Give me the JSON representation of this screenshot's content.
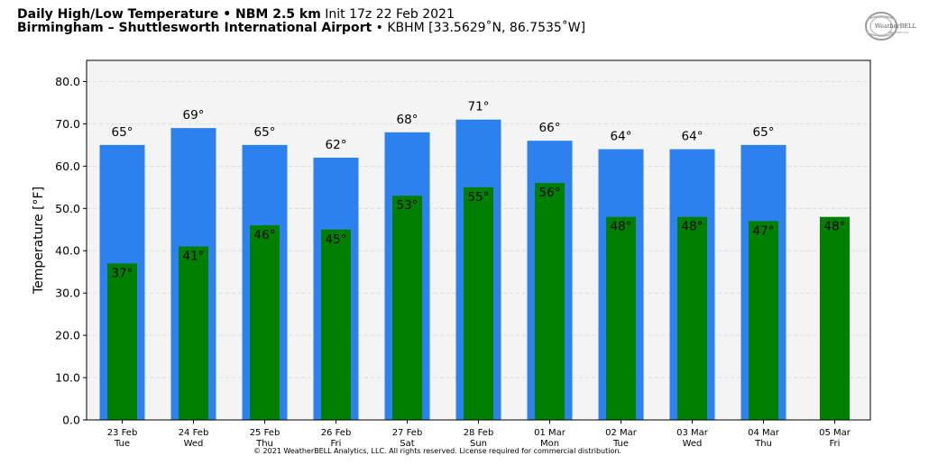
{
  "header": {
    "title_bold": "Daily High/Low Temperature",
    "separator": " • ",
    "model_bold": "NBM 2.5 km",
    "init_text": "Init 17z 22 Feb 2021",
    "location_bold": "Birmingham – Shuttlesworth International Airport",
    "station_text": "KBHM [33.5629˚N, 86.7535˚W]"
  },
  "logo": {
    "text": "WeatherBELL",
    "subtext": "ANALYTICS LLC"
  },
  "copyright": "© 2021 WeatherBELL Analytics, LLC. All rights reserved. License required for commercial distribution.",
  "colors": {
    "high": "#2c81ee",
    "low": "#008000",
    "plot_bg": "#f4f4f4",
    "grid": "#d8d8d8"
  },
  "chart_data": {
    "type": "bar",
    "title": "Daily High/Low Temperature",
    "ylabel": "Temperature [°F]",
    "ylim": [
      0,
      85
    ],
    "yticks": [
      "0.0",
      "10.0",
      "20.0",
      "30.0",
      "40.0",
      "50.0",
      "60.0",
      "70.0",
      "80.0"
    ],
    "categories": [
      "23 Feb",
      "24 Feb",
      "25 Feb",
      "26 Feb",
      "27 Feb",
      "28 Feb",
      "01 Mar",
      "02 Mar",
      "03 Mar",
      "04 Mar",
      "05 Mar"
    ],
    "weekdays": [
      "Tue",
      "Wed",
      "Thu",
      "Fri",
      "Sat",
      "Sun",
      "Mon",
      "Tue",
      "Wed",
      "Thu",
      "Fri"
    ],
    "series": [
      {
        "values": [
          65,
          69,
          65,
          62,
          68,
          71,
          66,
          64,
          64,
          65,
          null
        ],
        "labels": [
          "65°",
          "69°",
          "65°",
          "62°",
          "68°",
          "71°",
          "66°",
          "64°",
          "64°",
          "65°",
          ""
        ]
      },
      {
        "values": [
          37,
          41,
          46,
          45,
          53,
          55,
          56,
          48,
          48,
          47,
          48
        ],
        "labels": [
          "37°",
          "41°",
          "46°",
          "45°",
          "53°",
          "55°",
          "56°",
          "48°",
          "48°",
          "47°",
          "48°"
        ]
      }
    ],
    "grid": true,
    "legend": "none"
  }
}
